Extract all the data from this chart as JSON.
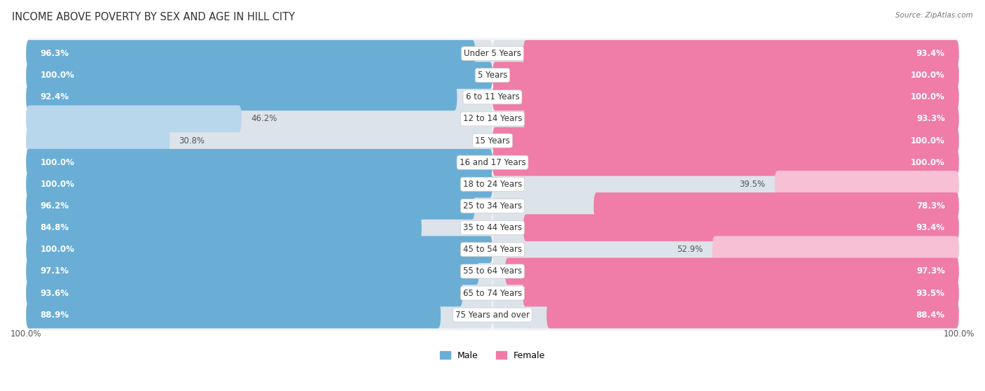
{
  "title": "INCOME ABOVE POVERTY BY SEX AND AGE IN HILL CITY",
  "source": "Source: ZipAtlas.com",
  "categories": [
    "Under 5 Years",
    "5 Years",
    "6 to 11 Years",
    "12 to 14 Years",
    "15 Years",
    "16 and 17 Years",
    "18 to 24 Years",
    "25 to 34 Years",
    "35 to 44 Years",
    "45 to 54 Years",
    "55 to 64 Years",
    "65 to 74 Years",
    "75 Years and over"
  ],
  "male_values": [
    96.3,
    100.0,
    92.4,
    46.2,
    30.8,
    100.0,
    100.0,
    96.2,
    84.8,
    100.0,
    97.1,
    93.6,
    88.9
  ],
  "female_values": [
    93.4,
    100.0,
    100.0,
    93.3,
    100.0,
    100.0,
    39.5,
    78.3,
    93.4,
    52.9,
    97.3,
    93.5,
    88.4
  ],
  "male_color": "#6aaed6",
  "female_color": "#f07ca8",
  "male_light_color": "#b8d7ed",
  "female_light_color": "#f8c0d4",
  "background_color": "#ffffff",
  "bar_bg_color": "#dde3ea",
  "row_bg_color": "#f0f2f5",
  "title_fontsize": 10.5,
  "label_fontsize": 8.5,
  "category_fontsize": 8.5,
  "footer_fontsize": 8.5,
  "value_threshold": 55
}
